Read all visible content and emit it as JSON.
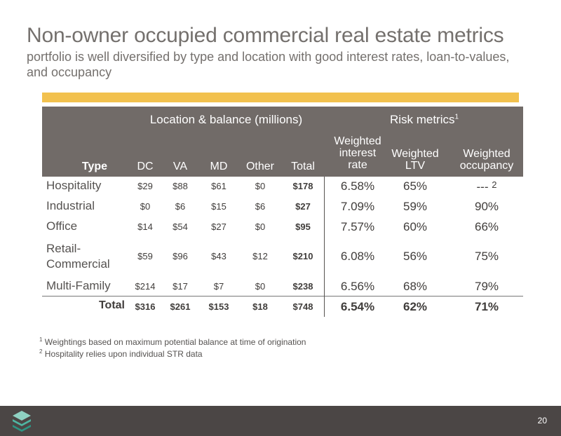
{
  "slide": {
    "title": "Non-owner occupied commercial real estate metrics",
    "subtitle": "portfolio is well diversified by type and location with good interest rates, loan-to-values, and occupancy",
    "page_number": "20",
    "accent_color": "#f2c14e",
    "header_color": "#716b68",
    "footer_color": "#4b4645"
  },
  "table": {
    "group_location": "Location & balance (millions)",
    "group_risk": "Risk metrics",
    "group_risk_sup": "1",
    "headers": {
      "type": "Type",
      "dc": "DC",
      "va": "VA",
      "md": "MD",
      "other": "Other",
      "total": "Total",
      "rate_l1": "Weighted",
      "rate_l2": "interest",
      "rate_l3": "rate",
      "ltv_l1": "Weighted",
      "ltv_l2": "LTV",
      "occ_l1": "Weighted",
      "occ_l2": "occupancy"
    },
    "rows": [
      {
        "type": "Hospitality",
        "dc": "$29",
        "va": "$88",
        "md": "$61",
        "other": "$0",
        "total": "$178",
        "rate": "6.58%",
        "ltv": "65%",
        "occupancy": "---",
        "occupancy_sup": "2"
      },
      {
        "type": "Industrial",
        "dc": "$0",
        "va": "$6",
        "md": "$15",
        "other": "$6",
        "total": "$27",
        "rate": "7.09%",
        "ltv": "59%",
        "occupancy": "90%"
      },
      {
        "type": "Office",
        "dc": "$14",
        "va": "$54",
        "md": "$27",
        "other": "$0",
        "total": "$95",
        "rate": "7.57%",
        "ltv": "60%",
        "occupancy": "66%"
      },
      {
        "type_l1": "Retail-",
        "type_l2": "Commercial",
        "dc": "$59",
        "va": "$96",
        "md": "$43",
        "other": "$12",
        "total": "$210",
        "rate": "6.08%",
        "ltv": "56%",
        "occupancy": "75%"
      },
      {
        "type": "Multi-Family",
        "dc": "$214",
        "va": "$17",
        "md": "$7",
        "other": "$0",
        "total": "$238",
        "rate": "6.56%",
        "ltv": "68%",
        "occupancy": "79%"
      }
    ],
    "total_row": {
      "label": "Total",
      "dc": "$316",
      "va": "$261",
      "md": "$153",
      "other": "$18",
      "total": "$748",
      "rate": "6.54%",
      "ltv": "62%",
      "occupancy": "71%"
    }
  },
  "footnotes": [
    {
      "marker": "1",
      "text": "Weightings based on maximum potential balance at time of origination"
    },
    {
      "marker": "2",
      "text": "Hospitality relies upon individual STR data"
    }
  ],
  "logo_icon": "stacked-layers-icon"
}
